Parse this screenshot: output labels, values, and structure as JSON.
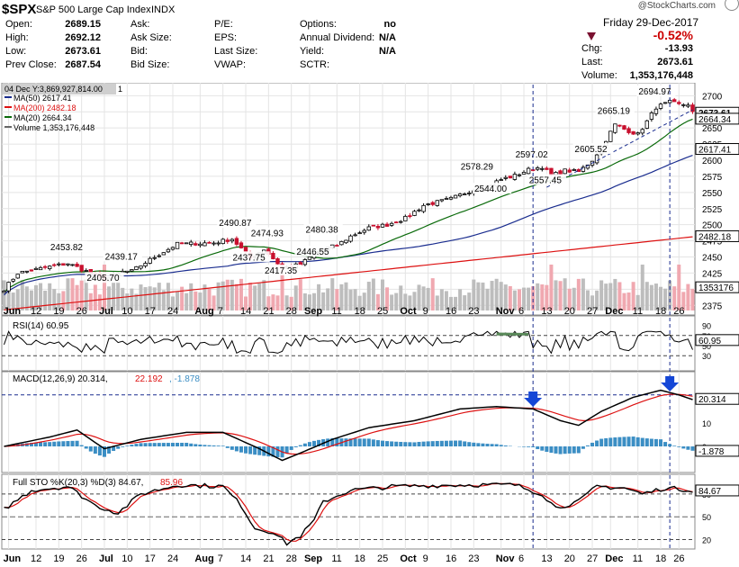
{
  "header": {
    "symbol": "$SPX",
    "name": "S&P 500 Large Cap Index",
    "exchange": "INDX",
    "watermark": "@StockCharts.com",
    "date": "Friday  29-Dec-2017",
    "pct_change": "-0.52%",
    "fields": {
      "open_label": "Open:",
      "open": "2689.15",
      "high_label": "High:",
      "high": "2692.12",
      "low_label": "Low:",
      "low": "2673.61",
      "prev_label": "Prev Close:",
      "prev": "2687.54",
      "ask_label": "Ask:",
      "asksize_label": "Ask Size:",
      "bid_label": "Bid:",
      "bidsize_label": "Bid Size:",
      "pe_label": "P/E:",
      "eps_label": "EPS:",
      "lastsize_label": "Last Size:",
      "vwap_label": "VWAP:",
      "options_label": "Options:",
      "options": "no",
      "div_label": "Annual Dividend:",
      "div": "N/A",
      "yield_label": "Yield:",
      "yield": "N/A",
      "sctr_label": "SCTR:",
      "chg_label": "Chg:",
      "chg": "-13.93",
      "last_label": "Last:",
      "last": "2673.61",
      "volume_label": "Volume:",
      "volume": "1,353,176,448"
    },
    "colors": {
      "down": "#cc0000",
      "arrow": "#7a1030"
    }
  },
  "chart_data": [
    {
      "type": "candlestick",
      "panel": "price",
      "hover_label": "04 Dec Y:3,869,927,814.00",
      "hover_suffix": "1",
      "legend": [
        "MA(50) 2617.41",
        "MA(200) 2482.18",
        "MA(20) 2664.34",
        "Volume 1,353,176,448"
      ],
      "ylim": [
        2360,
        2720
      ],
      "yticks": [
        2375,
        2400,
        2425,
        2450,
        2475,
        2500,
        2525,
        2550,
        2575,
        2600,
        2625,
        2650,
        2675,
        2700
      ],
      "annotations": [
        {
          "day": 14,
          "value": 2453.82,
          "label": "2453.82"
        },
        {
          "day": 22,
          "value": 2405.7,
          "label": "2405.70"
        },
        {
          "day": 26,
          "value": 2439.17,
          "label": "2439.17"
        },
        {
          "day": 51,
          "value": 2490.87,
          "label": "2490.87"
        },
        {
          "day": 54,
          "value": 2437.75,
          "label": "2437.75"
        },
        {
          "day": 58,
          "value": 2474.93,
          "label": "2474.93"
        },
        {
          "day": 61,
          "value": 2417.35,
          "label": "2417.35"
        },
        {
          "day": 68,
          "value": 2446.55,
          "label": "2446.55"
        },
        {
          "day": 70,
          "value": 2480.38,
          "label": "2480.38"
        },
        {
          "day": 104,
          "value": 2578.29,
          "label": "2578.29"
        },
        {
          "day": 107,
          "value": 2544.0,
          "label": "2544.00"
        },
        {
          "day": 116,
          "value": 2597.02,
          "label": "2597.02"
        },
        {
          "day": 119,
          "value": 2557.45,
          "label": "2557.45"
        },
        {
          "day": 129,
          "value": 2605.52,
          "label": "2605.52"
        },
        {
          "day": 134,
          "value": 2665.19,
          "label": "2665.19"
        },
        {
          "day": 143,
          "value": 2694.97,
          "label": "2694.97"
        }
      ],
      "badges": [
        {
          "value": 2673.61,
          "label": "2673.61",
          "color": "#000000"
        },
        {
          "value": 2664.34,
          "label": "2664.34",
          "color": "#000000"
        },
        {
          "value": 2617.41,
          "label": "2617.41",
          "color": "#000000"
        },
        {
          "value": 2482.18,
          "label": "2482.18",
          "color": "#000000"
        },
        {
          "value": 2403,
          "label": "1353176",
          "color": "#000000"
        }
      ],
      "volume_last": "1353176"
    },
    {
      "type": "line",
      "panel": "rsi",
      "label": "RSI(14) 60.95",
      "ylim": [
        0,
        100
      ],
      "yticks": [
        30,
        50,
        70,
        90
      ],
      "lines": [
        30,
        70
      ],
      "last": "60.95"
    },
    {
      "type": "line",
      "panel": "macd",
      "label_a": "MACD(12,26,9) 20.314, ",
      "label_b": "22.192",
      "label_c": ", -1.878",
      "ylim": [
        -10,
        30
      ],
      "yticks": [
        0,
        10,
        20
      ],
      "last_macd": "20.314",
      "last_signal": "22.192",
      "last_hist": "-1.878"
    },
    {
      "type": "line",
      "panel": "sto",
      "label_a": "Full STO %K(20,3) %D(3) 84.67, ",
      "label_b": "85.96",
      "ylim": [
        10,
        100
      ],
      "yticks": [
        20,
        50,
        80
      ],
      "lines": [
        20,
        80
      ],
      "last_k": "84.67"
    }
  ],
  "x_axis": {
    "labels": [
      "Jun",
      "12",
      "19",
      "26",
      "Jul",
      "10",
      "17",
      "24",
      "Aug",
      "7",
      "14",
      "21",
      "28",
      "Sep",
      "11",
      "18",
      "25",
      "Oct",
      "9",
      "16",
      "23",
      "Nov",
      "6",
      "13",
      "20",
      "27",
      "Dec",
      "11",
      "18",
      "26"
    ],
    "days": [
      1,
      7,
      12,
      17,
      22,
      27,
      32,
      37,
      43,
      48,
      53,
      58,
      63,
      67,
      73,
      78,
      83,
      88,
      93,
      98,
      103,
      109,
      114,
      119,
      124,
      129,
      133,
      139,
      144,
      148
    ],
    "bold": [
      true,
      false,
      false,
      false,
      true,
      false,
      false,
      false,
      true,
      false,
      false,
      false,
      false,
      true,
      false,
      false,
      false,
      true,
      false,
      false,
      false,
      true,
      false,
      false,
      false,
      false,
      true,
      false,
      false,
      false
    ]
  }
}
